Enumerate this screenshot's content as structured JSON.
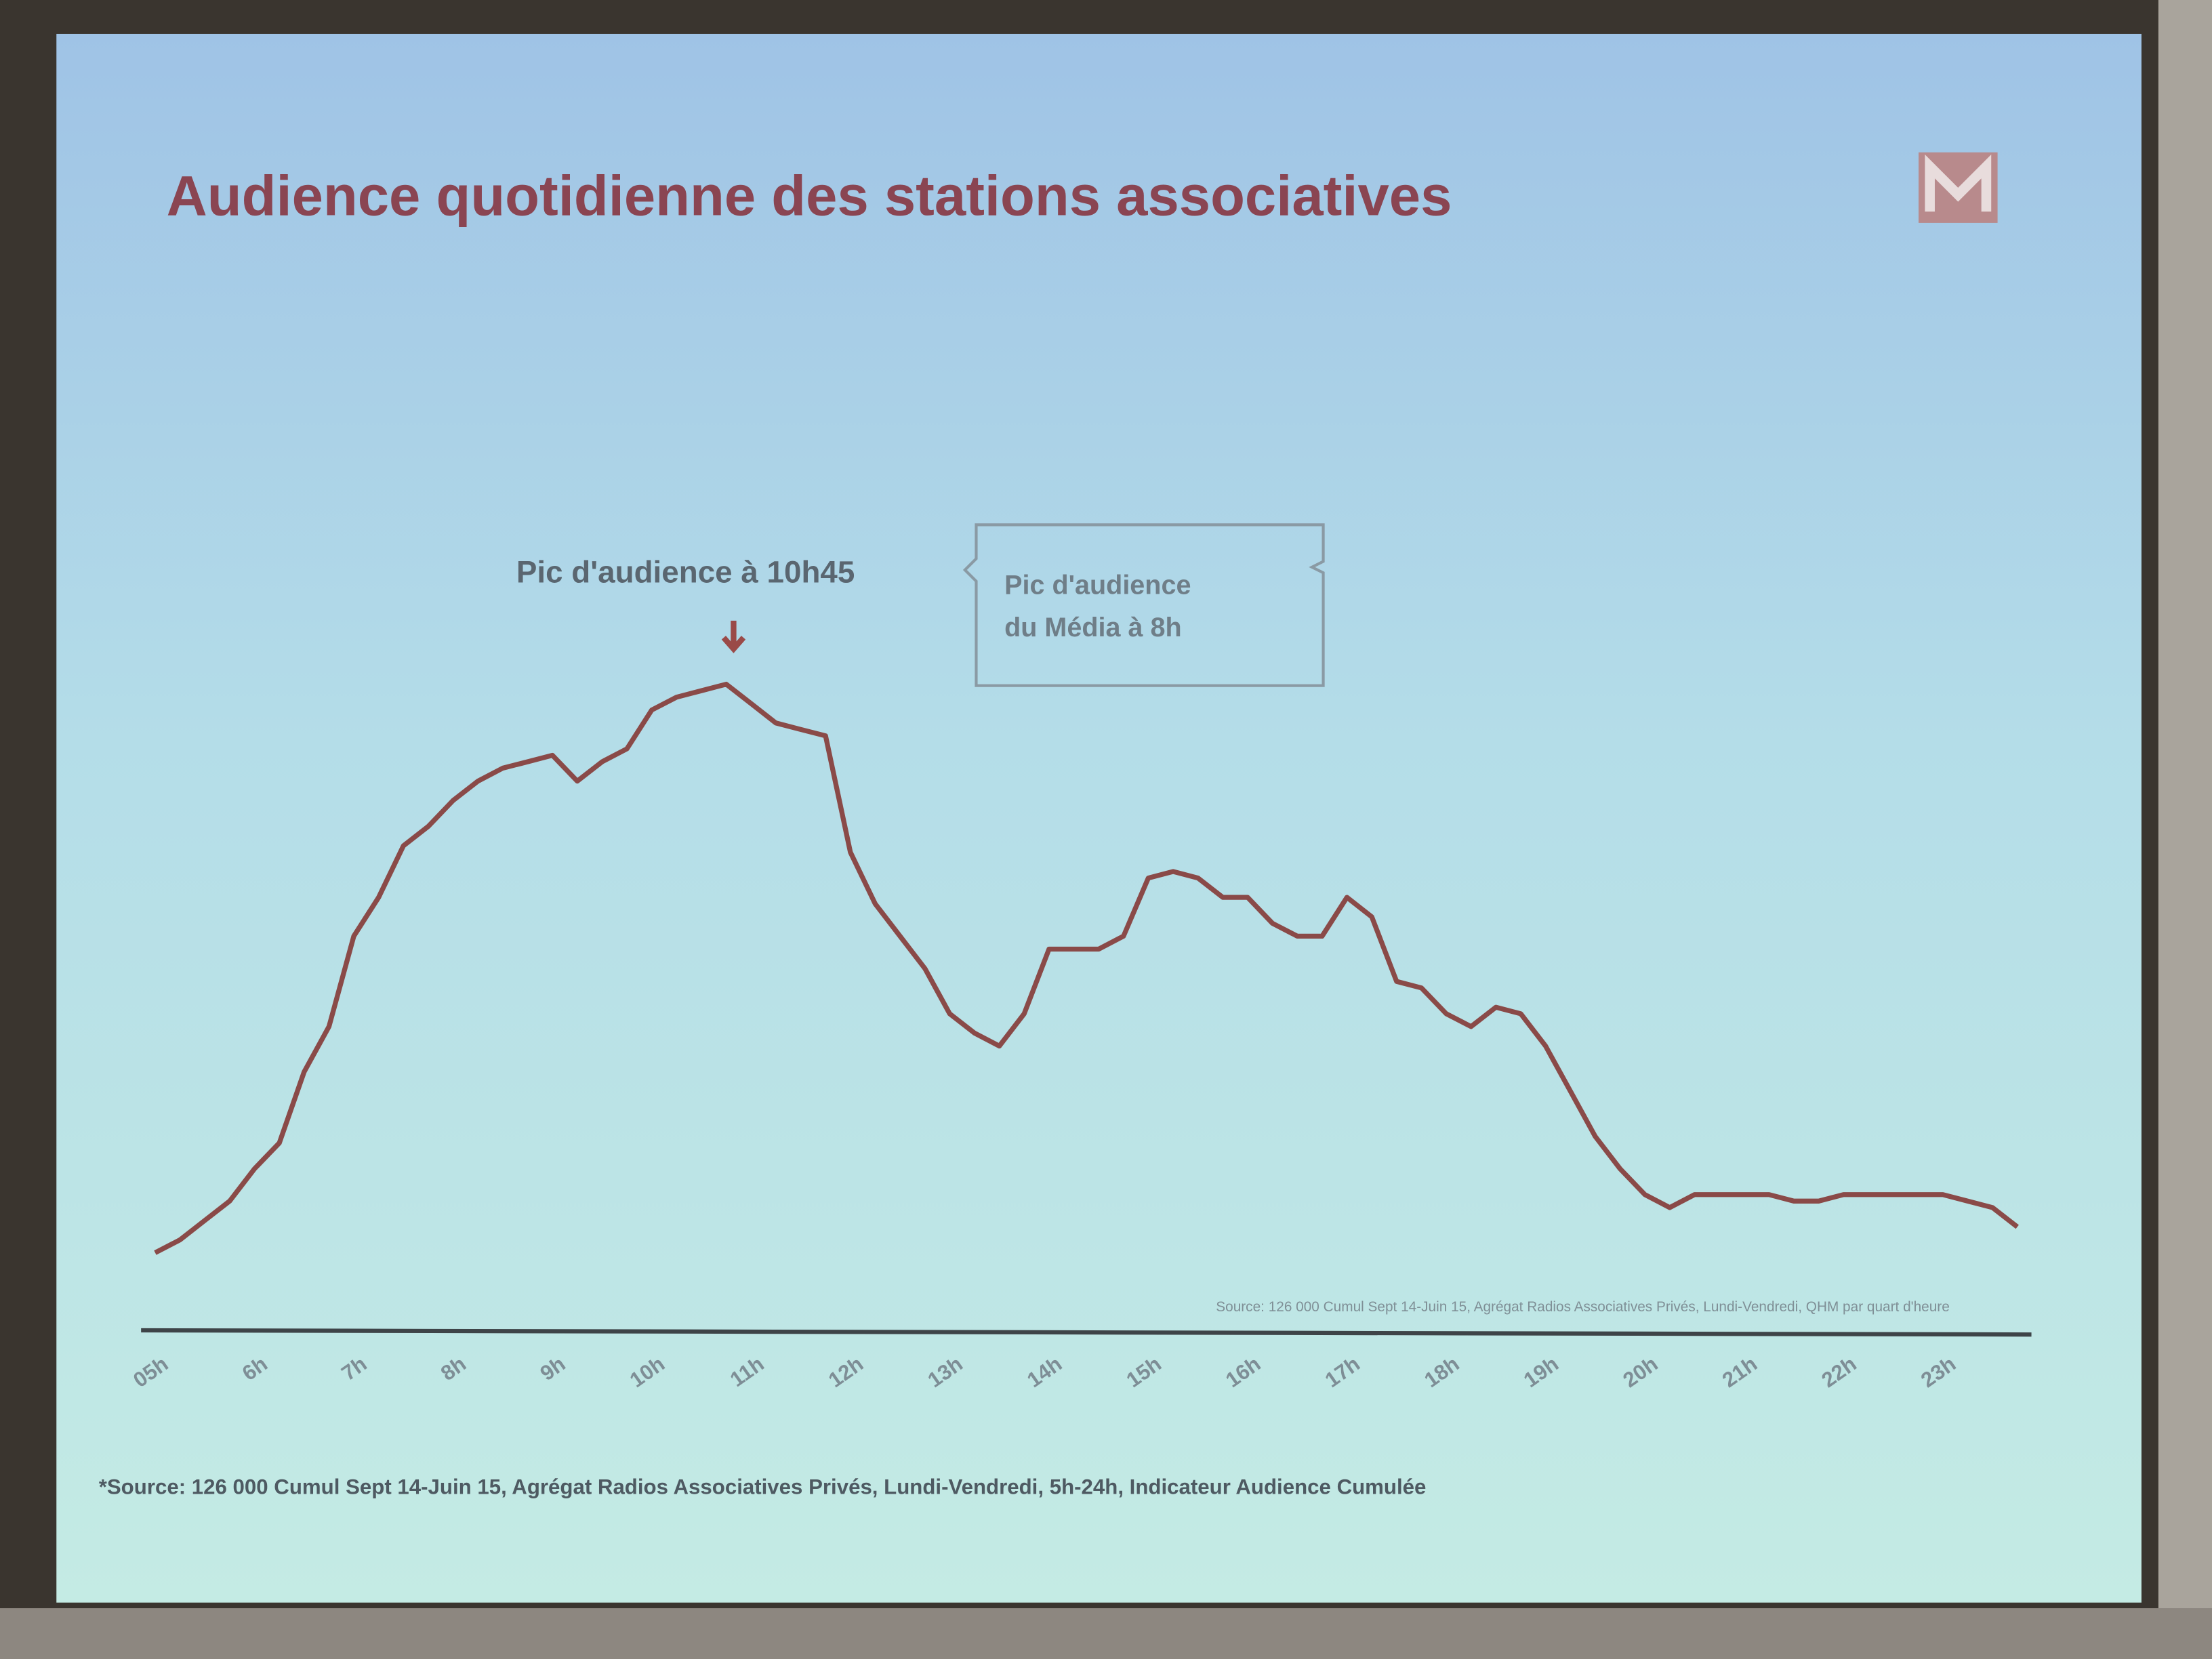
{
  "chart_data": {
    "type": "line",
    "title": "Audience quotidienne des stations associatives",
    "annotation": "Pic d'audience à 10h45",
    "callout": [
      "Pic d'audience",
      "du Média à 8h"
    ],
    "source_note": "Source: 126 000 Cumul Sept 14-Juin 15, Agrégat Radios Associatives Privés, Lundi-Vendredi, QHM par quart d'heure",
    "footnote": "*Source: 126 000 Cumul Sept 14-Juin 15, Agrégat Radios Associatives Privés, Lundi-Vendredi, 5h-24h, Indicateur Audience Cumulée",
    "color": "#8a4a48",
    "categories": [
      "05h",
      null,
      null,
      null,
      "6h",
      null,
      null,
      null,
      "7h",
      null,
      null,
      null,
      "8h",
      null,
      null,
      null,
      "9h",
      null,
      null,
      null,
      "10h",
      null,
      null,
      null,
      "11h",
      null,
      null,
      null,
      "12h",
      null,
      null,
      null,
      "13h",
      null,
      null,
      null,
      "14h",
      null,
      null,
      null,
      "15h",
      null,
      null,
      null,
      "16h",
      null,
      null,
      null,
      "17h",
      null,
      null,
      null,
      "18h",
      null,
      null,
      null,
      "19h",
      null,
      null,
      null,
      "20h",
      null,
      null,
      null,
      "21h",
      null,
      null,
      null,
      "22h",
      null,
      null,
      null,
      "23h",
      null,
      null,
      null
    ],
    "values": [
      12,
      14,
      17,
      20,
      25,
      29,
      40,
      47,
      61,
      67,
      75,
      78,
      82,
      85,
      87,
      88,
      89,
      85,
      88,
      90,
      96,
      98,
      99,
      100,
      97,
      94,
      93,
      92,
      74,
      66,
      61,
      56,
      49,
      46,
      44,
      49,
      59,
      59,
      59,
      61,
      70,
      71,
      70,
      67,
      67,
      63,
      61,
      61,
      67,
      64,
      54,
      53,
      49,
      47,
      50,
      49,
      44,
      37,
      30,
      25,
      21,
      19,
      21,
      21,
      21,
      21,
      20,
      20,
      21,
      21,
      21,
      21,
      21,
      20,
      19,
      16
    ]
  }
}
